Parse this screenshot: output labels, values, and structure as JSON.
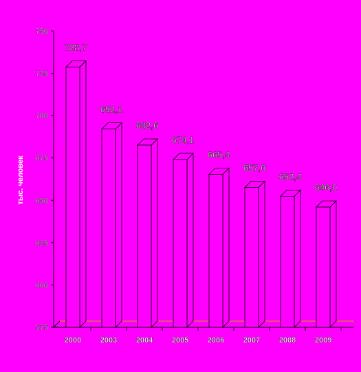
{
  "chart_data": {
    "type": "bar",
    "categories": [
      "2000",
      "2003",
      "2004",
      "2005",
      "2006",
      "2007",
      "2008",
      "2009"
    ],
    "values": [
      728.7,
      692.1,
      682.6,
      674.1,
      665.4,
      657.6,
      652.4,
      646.0
    ],
    "value_labels": [
      "728,7",
      "692,1",
      "682,6",
      "674,1",
      "665,4",
      "657,6",
      "652,4",
      "646,0"
    ],
    "y_ticks": [
      "575",
      "600",
      "625",
      "650",
      "675",
      "700",
      "725",
      "750"
    ],
    "ylabel": "тыс. человек",
    "ylim": [
      575,
      750
    ],
    "grid": false,
    "legend": "none"
  },
  "colors": {
    "background": "#ff00ff",
    "bar_fill": "#ff00ff",
    "bar_edge": "#000000",
    "floor_line": "#c8a000"
  }
}
